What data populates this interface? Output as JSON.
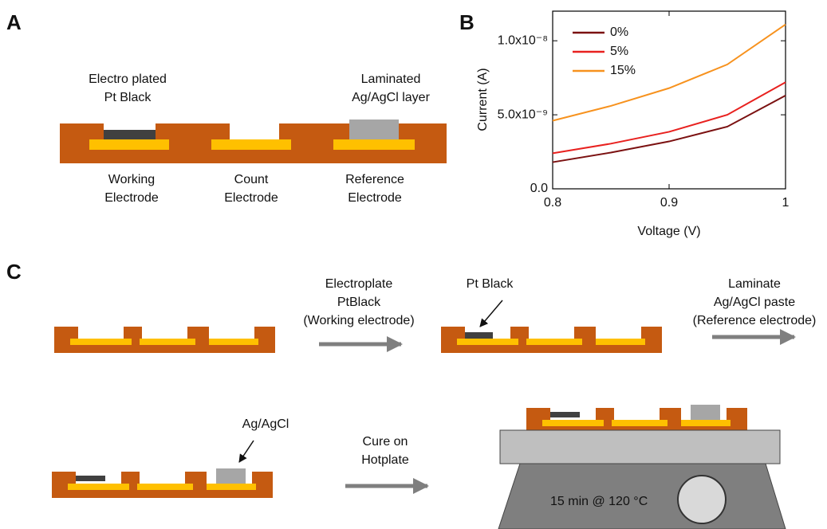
{
  "panel_labels": [
    "A",
    "B",
    "C"
  ],
  "panel_a": {
    "top_labels": [
      [
        "Electro plated",
        "Pt Black"
      ],
      [
        "Laminated",
        "Ag/AgCl layer"
      ]
    ],
    "bottom_labels": [
      [
        "Working",
        "Electrode"
      ],
      [
        "Count",
        "Electrode"
      ],
      [
        "Reference",
        "Electrode"
      ]
    ]
  },
  "panel_c": {
    "step_1": [
      "Electroplate",
      "PtBlack",
      "(Working electrode)"
    ],
    "pt_black_callout": "Pt Black",
    "step_2": [
      "Laminate",
      "Ag/AgCl paste",
      "(Reference electrode)"
    ],
    "ag_callout": "Ag/AgCl",
    "step_3": [
      "Cure on",
      "Hotplate"
    ],
    "hotplate_setting": "15 min @ 120 °C"
  },
  "chart_data": {
    "type": "line",
    "x_label": "Voltage (V)",
    "y_label": "Current (A)",
    "x": [
      0.8,
      0.85,
      0.9,
      0.95,
      1.0
    ],
    "series": [
      {
        "name": "0%",
        "color": "#7b1111",
        "values": [
          1.8e-09,
          2.45e-09,
          3.2e-09,
          4.2e-09,
          6.3e-09
        ]
      },
      {
        "name": "5%",
        "color": "#e8211f",
        "values": [
          2.4e-09,
          3.05e-09,
          3.85e-09,
          5e-09,
          7.2e-09
        ]
      },
      {
        "name": "15%",
        "color": "#f7921e",
        "values": [
          4.6e-09,
          5.6e-09,
          6.8e-09,
          8.4e-09,
          1.11e-08
        ]
      }
    ],
    "xlim": [
      0.8,
      1.0
    ],
    "xticks": [
      0.8,
      0.9,
      1
    ],
    "ylim": [
      0,
      1.2e-08
    ],
    "yticks": [
      {
        "value": 0,
        "label": "0.0"
      },
      {
        "value": 5e-09,
        "label": "5.0x10⁻⁹"
      },
      {
        "value": 1e-08,
        "label": "1.0x10⁻⁸"
      }
    ],
    "legend": "upper left"
  }
}
